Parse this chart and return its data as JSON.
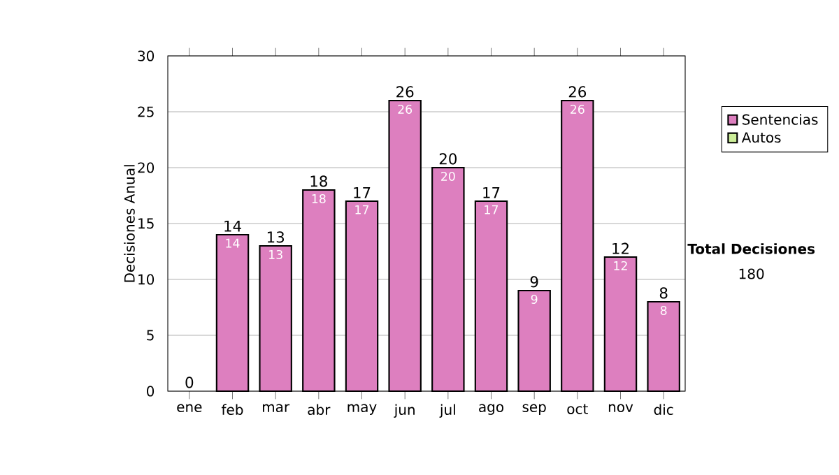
{
  "chart_data": {
    "type": "bar",
    "stacked": true,
    "ylabel": "Decisiones Anual",
    "categories": [
      "ene",
      "feb",
      "mar",
      "abr",
      "may",
      "jun",
      "jul",
      "ago",
      "sep",
      "oct",
      "nov",
      "dic"
    ],
    "series": [
      {
        "name": "Sentencias",
        "color": "#dd7fbf",
        "values": [
          0,
          14,
          13,
          18,
          17,
          26,
          20,
          17,
          9,
          26,
          12,
          8
        ],
        "value_labels": [
          null,
          "14",
          "13",
          "18",
          "17",
          "26",
          "20",
          "17",
          "9",
          "26",
          "12",
          "8"
        ]
      },
      {
        "name": "Autos",
        "color": "#ccee99",
        "values": [
          0,
          0,
          0,
          0,
          0,
          0,
          0,
          0,
          0,
          0,
          0,
          0
        ]
      }
    ],
    "totals": [
      "0",
      "14",
      "13",
      "18",
      "17",
      "26",
      "20",
      "17",
      "9",
      "26",
      "12",
      "8"
    ],
    "ylim": [
      0,
      30
    ],
    "yticks": [
      0,
      5,
      10,
      15,
      20,
      25,
      30
    ],
    "grid": "y",
    "legend": "right",
    "annotations": [
      "Total Decisiones",
      "180"
    ]
  }
}
